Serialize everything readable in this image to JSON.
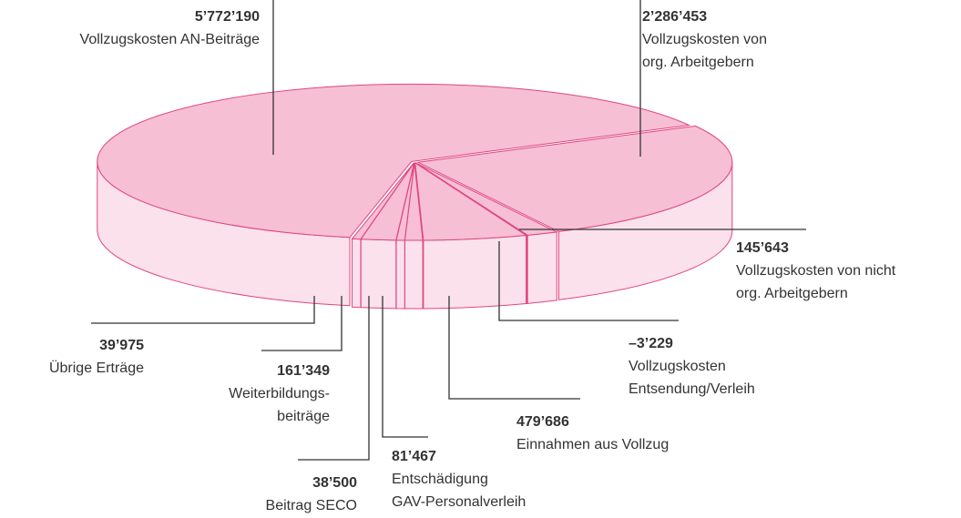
{
  "chart_data": {
    "type": "pie",
    "categories": [
      "Vollzugskosten von\norg. Arbeitgebern",
      "Vollzugskosten von nicht\norg. Arbeitgebern",
      "Vollzugskosten\nEntsendung/Verleih",
      "Einnahmen aus Vollzug",
      "Entschädigung\nGAV-Personalverleih",
      "Beitrag SECO",
      "Weiterbildungs-\nbeiträge",
      "Übrige Erträge",
      "Vollzugskosten AN-Beiträge"
    ],
    "values": [
      2286453,
      145643,
      -3229,
      479686,
      81467,
      38500,
      161349,
      39975,
      5772190
    ],
    "value_labels": [
      "2’286’453",
      "145’643",
      "–3’229",
      "479’686",
      "81’467",
      "38’500",
      "161’349",
      "39’975",
      "5’772’190"
    ],
    "colors": {
      "top": "#f6bfd4",
      "side": "#fbe1eb",
      "outline": "#e0457f"
    }
  }
}
